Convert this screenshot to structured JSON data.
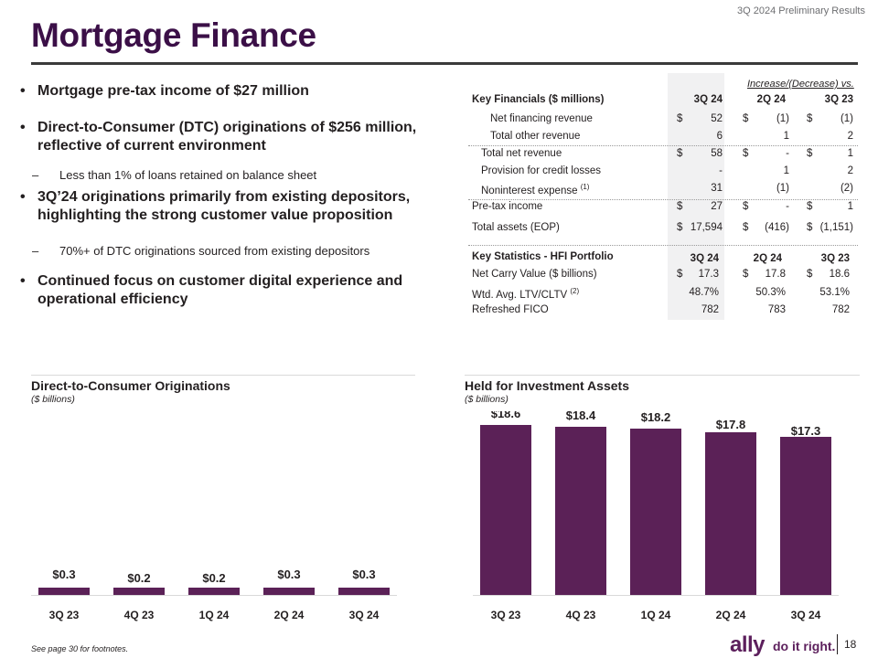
{
  "header": {
    "tag": "3Q 2024 Preliminary Results",
    "title": "Mortgage Finance"
  },
  "bullets": {
    "b1": "Mortgage pre-tax income of $27 million",
    "b2": "Direct-to-Consumer (DTC) originations of $256 million, reflective of current environment",
    "s1": "Less than 1% of loans retained on balance sheet",
    "b3": "3Q’24 originations primarily from existing depositors, highlighting the strong customer value proposition",
    "s2": "70%+ of DTC originations sourced from existing depositors",
    "b4": "Continued focus on customer digital experience and operational efficiency",
    "dot": "•",
    "dash": "–"
  },
  "table": {
    "increase_label": "Increase/(Decrease) vs.",
    "section1_title": "Key Financials ($ millions)",
    "col1": "3Q 24",
    "col2": "2Q 24",
    "col3": "3Q 23",
    "rows1": [
      {
        "label": "Net financing revenue",
        "v1": "52",
        "v2": "(1)",
        "v3": "(1)"
      },
      {
        "label": "Total other revenue",
        "v1": "6",
        "v2": "1",
        "v3": "2"
      },
      {
        "label": "Total net revenue",
        "v1": "58",
        "v2": "-",
        "v3": "1"
      },
      {
        "label": "Provision for credit losses",
        "v1": "-",
        "v2": "1",
        "v3": "2"
      },
      {
        "label": "Noninterest expense",
        "sup": "(1)",
        "v1": "31",
        "v2": "(1)",
        "v3": "(2)"
      },
      {
        "label": "Pre-tax income",
        "v1": "27",
        "v2": "-",
        "v3": "1"
      },
      {
        "label": "Total assets (EOP)",
        "v1": "17,594",
        "v2": "(416)",
        "v3": "(1,151)"
      }
    ],
    "dollar": "$",
    "section2_title": "Key Statistics - HFI Portfolio",
    "rows2": [
      {
        "label": "Net Carry Value ($ billions)",
        "v1": "17.3",
        "v2": "17.8",
        "v3": "18.6"
      },
      {
        "label": "Wtd. Avg. LTV/CLTV",
        "sup": "(2)",
        "v1": "48.7%",
        "v2": "50.3%",
        "v3": "53.1%"
      },
      {
        "label": "Refreshed FICO",
        "v1": "782",
        "v2": "783",
        "v3": "782"
      }
    ]
  },
  "charts": {
    "left_title": "Direct-to-Consumer Originations",
    "left_sub": "($ billions)",
    "right_title": "Held for Investment Assets",
    "right_sub": "($ billions)"
  },
  "chart_data": [
    {
      "type": "bar",
      "title": "Direct-to-Consumer Originations",
      "ylabel": "($ billions)",
      "categories": [
        "3Q 23",
        "4Q 23",
        "1Q 24",
        "2Q 24",
        "3Q 24"
      ],
      "values": [
        0.3,
        0.2,
        0.2,
        0.3,
        0.3
      ],
      "labels": [
        "$0.3",
        "$0.2",
        "$0.2",
        "$0.3",
        "$0.3"
      ],
      "ylim": [
        0,
        20
      ],
      "color": "#5b2157"
    },
    {
      "type": "bar",
      "title": "Held for Investment Assets",
      "ylabel": "($ billions)",
      "categories": [
        "3Q 23",
        "4Q 23",
        "1Q 24",
        "2Q 24",
        "3Q 24"
      ],
      "values": [
        18.6,
        18.4,
        18.2,
        17.8,
        17.3
      ],
      "labels": [
        "$18.6",
        "$18.4",
        "$18.2",
        "$17.8",
        "$17.3"
      ],
      "ylim": [
        0,
        20
      ],
      "color": "#5b2157"
    }
  ],
  "footer": {
    "footnote": "See page 30 for footnotes.",
    "logo": "ally",
    "tagline": "do it right.",
    "page": "18"
  },
  "colors": {
    "brand": "#3b0f47",
    "bar": "#5b2157"
  }
}
